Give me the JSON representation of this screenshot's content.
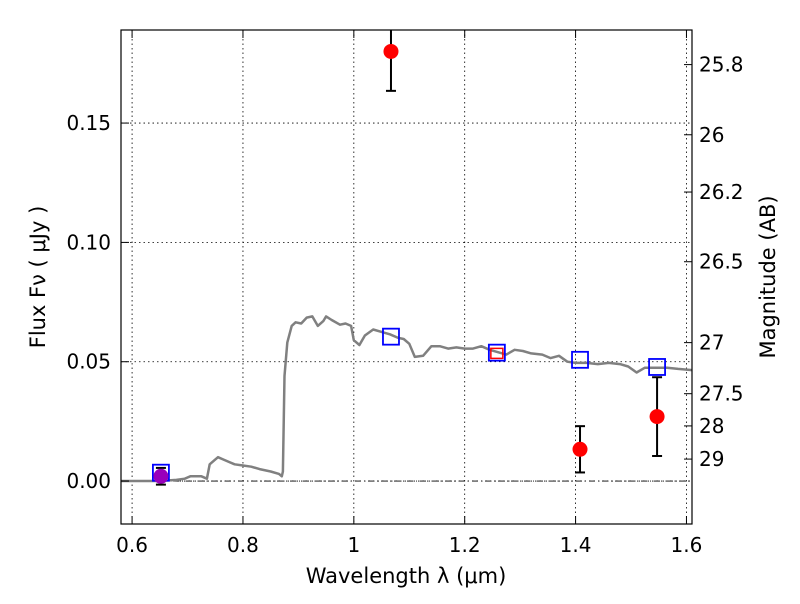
{
  "chart_data": {
    "type": "scatter",
    "xlabel": "Wavelength  λ (μm)",
    "ylabel": "Flux  Fν  ( μJy )",
    "y2label": "Magnitude (AB)",
    "xlim": [
      0.58,
      1.61
    ],
    "ylim": [
      -0.018,
      0.189
    ],
    "grid": true,
    "x_ticks": [
      {
        "v": 0.6,
        "label": "0.6"
      },
      {
        "v": 0.8,
        "label": "0.8"
      },
      {
        "v": 1.0,
        "label": "1"
      },
      {
        "v": 1.2,
        "label": "1.2"
      },
      {
        "v": 1.4,
        "label": "1.4"
      },
      {
        "v": 1.6,
        "label": "1.6"
      }
    ],
    "y_ticks": [
      {
        "v": 0.0,
        "label": "0.00"
      },
      {
        "v": 0.05,
        "label": "0.05"
      },
      {
        "v": 0.1,
        "label": "0.10"
      },
      {
        "v": 0.15,
        "label": "0.15"
      }
    ],
    "y2_ticks": [
      {
        "flux": 0.1745,
        "label": "25.8"
      },
      {
        "flux": 0.1451,
        "label": "26"
      },
      {
        "flux": 0.1211,
        "label": "26.2"
      },
      {
        "flux": 0.0919,
        "label": "26.5"
      },
      {
        "flux": 0.058,
        "label": "27"
      },
      {
        "flux": 0.0366,
        "label": "27.5"
      },
      {
        "flux": 0.0231,
        "label": "28"
      },
      {
        "flux": 0.0092,
        "label": "29"
      }
    ],
    "model_color": "#808080",
    "model_sed": [
      [
        0.58,
        0.0
      ],
      [
        0.65,
        0.0
      ],
      [
        0.66,
        0.0002
      ],
      [
        0.68,
        0.0005
      ],
      [
        0.695,
        0.001
      ],
      [
        0.7,
        0.0015
      ],
      [
        0.705,
        0.002
      ],
      [
        0.715,
        0.002
      ],
      [
        0.725,
        0.002
      ],
      [
        0.735,
        0.001
      ],
      [
        0.74,
        0.007
      ],
      [
        0.75,
        0.009
      ],
      [
        0.755,
        0.01
      ],
      [
        0.765,
        0.009
      ],
      [
        0.775,
        0.008
      ],
      [
        0.785,
        0.007
      ],
      [
        0.8,
        0.0065
      ],
      [
        0.815,
        0.006
      ],
      [
        0.83,
        0.005
      ],
      [
        0.85,
        0.004
      ],
      [
        0.865,
        0.003
      ],
      [
        0.87,
        0.002
      ],
      [
        0.872,
        0.004
      ],
      [
        0.875,
        0.044
      ],
      [
        0.88,
        0.058
      ],
      [
        0.888,
        0.065
      ],
      [
        0.895,
        0.0665
      ],
      [
        0.905,
        0.066
      ],
      [
        0.915,
        0.0685
      ],
      [
        0.925,
        0.069
      ],
      [
        0.935,
        0.065
      ],
      [
        0.945,
        0.067
      ],
      [
        0.95,
        0.069
      ],
      [
        0.96,
        0.0675
      ],
      [
        0.975,
        0.0655
      ],
      [
        0.985,
        0.066
      ],
      [
        0.995,
        0.065
      ],
      [
        1.0,
        0.059
      ],
      [
        1.01,
        0.057
      ],
      [
        1.02,
        0.061
      ],
      [
        1.035,
        0.0635
      ],
      [
        1.05,
        0.0625
      ],
      [
        1.065,
        0.0615
      ],
      [
        1.08,
        0.06
      ],
      [
        1.09,
        0.0595
      ],
      [
        1.1,
        0.0575
      ],
      [
        1.11,
        0.052
      ],
      [
        1.125,
        0.0525
      ],
      [
        1.14,
        0.0565
      ],
      [
        1.155,
        0.0565
      ],
      [
        1.17,
        0.0555
      ],
      [
        1.185,
        0.056
      ],
      [
        1.2,
        0.0555
      ],
      [
        1.215,
        0.0555
      ],
      [
        1.23,
        0.0565
      ],
      [
        1.245,
        0.055
      ],
      [
        1.26,
        0.054
      ],
      [
        1.275,
        0.053
      ],
      [
        1.29,
        0.055
      ],
      [
        1.305,
        0.0545
      ],
      [
        1.32,
        0.0535
      ],
      [
        1.34,
        0.053
      ],
      [
        1.355,
        0.0515
      ],
      [
        1.37,
        0.0525
      ],
      [
        1.385,
        0.05
      ],
      [
        1.4,
        0.0495
      ],
      [
        1.42,
        0.0495
      ],
      [
        1.44,
        0.049
      ],
      [
        1.46,
        0.0495
      ],
      [
        1.48,
        0.049
      ],
      [
        1.495,
        0.048
      ],
      [
        1.51,
        0.0455
      ],
      [
        1.525,
        0.0475
      ],
      [
        1.545,
        0.0475
      ],
      [
        1.565,
        0.0475
      ],
      [
        1.585,
        0.047
      ],
      [
        1.61,
        0.0465
      ]
    ],
    "model_photometry": {
      "color": "#0000ff",
      "points": [
        {
          "x": 0.652,
          "y": 0.0035
        },
        {
          "x": 1.067,
          "y": 0.0605
        },
        {
          "x": 1.258,
          "y": 0.0538
        },
        {
          "x": 1.408,
          "y": 0.0508
        },
        {
          "x": 1.547,
          "y": 0.0478
        }
      ]
    },
    "observed": {
      "color": "#ff0000",
      "points": [
        {
          "x": 0.652,
          "y": 0.002,
          "err": 0.0035,
          "color": "#9900bb"
        },
        {
          "x": 1.067,
          "y": 0.18,
          "err": 0.0165
        },
        {
          "x": 1.258,
          "y": 0.0535,
          "err": 0.0
        },
        {
          "x": 1.408,
          "y": 0.0133,
          "err": 0.0097
        },
        {
          "x": 1.547,
          "y": 0.027,
          "err": 0.0165
        }
      ]
    }
  }
}
